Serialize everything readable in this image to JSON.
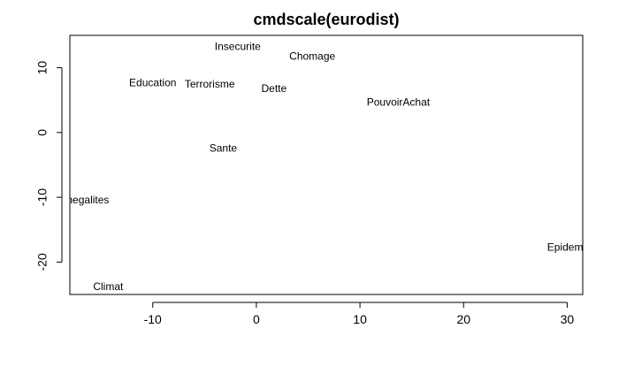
{
  "chart_data": {
    "type": "scatter",
    "title": "cmdscale(eurodist)",
    "xlabel": "",
    "ylabel": "",
    "xlim": [
      -18,
      31.5
    ],
    "ylim": [
      -25,
      15
    ],
    "x_ticks": [
      -10,
      0,
      10,
      20,
      30
    ],
    "y_ticks": [
      -20,
      -10,
      0,
      10
    ],
    "grid": false,
    "points": [
      {
        "label": "Insecurite",
        "x": -1.8,
        "y": 13.2
      },
      {
        "label": "Chomage",
        "x": 5.4,
        "y": 11.7
      },
      {
        "label": "Education",
        "x": -10.0,
        "y": 7.6
      },
      {
        "label": "Terrorisme",
        "x": -4.5,
        "y": 7.4
      },
      {
        "label": "Dette",
        "x": 1.7,
        "y": 6.7
      },
      {
        "label": "PouvoirAchat",
        "x": 13.7,
        "y": 4.6
      },
      {
        "label": "Sante",
        "x": -3.2,
        "y": -2.5
      },
      {
        "label": "Inegalites",
        "x": -16.4,
        "y": -10.5
      },
      {
        "label": "Epidemie",
        "x": 30.2,
        "y": -17.8
      },
      {
        "label": "Climat",
        "x": -14.3,
        "y": -23.9
      }
    ]
  }
}
